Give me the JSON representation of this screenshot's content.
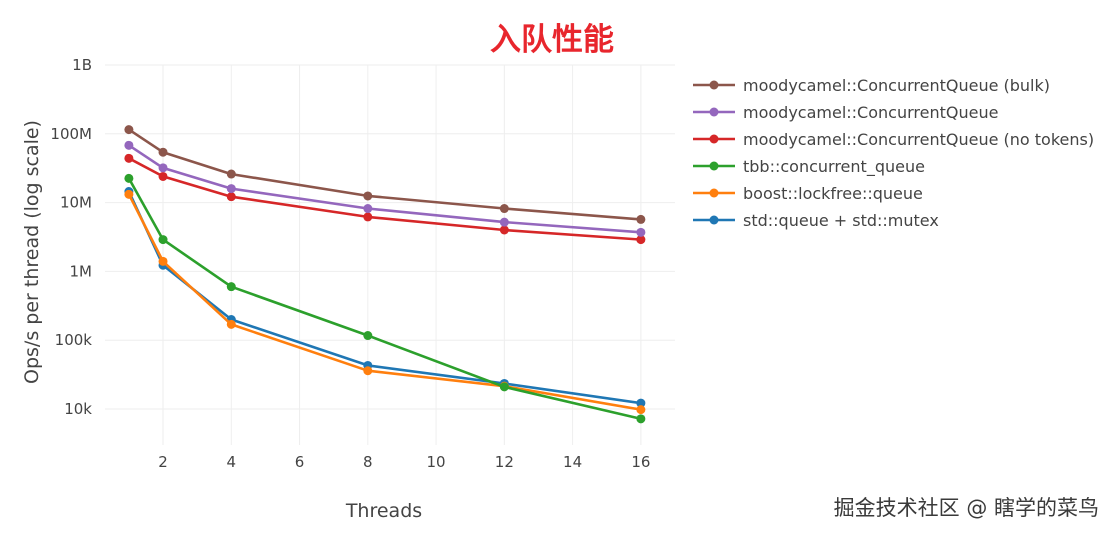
{
  "chart_data": {
    "type": "line",
    "title": "入队性能",
    "title_color": "#e8262d",
    "xlabel": "Threads",
    "ylabel": "Ops/s per thread (log scale)",
    "y_scale": "log",
    "ylim": [
      3000,
      1000000000
    ],
    "xlim": [
      0.3,
      17
    ],
    "x_ticks": [
      2,
      4,
      6,
      8,
      10,
      12,
      14,
      16
    ],
    "y_ticks": [
      {
        "value": 10000,
        "label": "10k"
      },
      {
        "value": 100000,
        "label": "100k"
      },
      {
        "value": 1000000,
        "label": "1M"
      },
      {
        "value": 10000000,
        "label": "10M"
      },
      {
        "value": 100000000,
        "label": "100M"
      },
      {
        "value": 1000000000,
        "label": "1B"
      }
    ],
    "grid": true,
    "legend_position": "right",
    "series": [
      {
        "name": "moodycamel::ConcurrentQueue (bulk)",
        "color": "#8c564b",
        "x": [
          1,
          2,
          4,
          8,
          12,
          16
        ],
        "y": [
          115000000,
          54000000,
          26000000,
          12500000,
          8200000,
          5700000
        ]
      },
      {
        "name": "moodycamel::ConcurrentQueue",
        "color": "#9467bd",
        "x": [
          1,
          2,
          4,
          8,
          12,
          16
        ],
        "y": [
          68000000,
          32000000,
          16000000,
          8200000,
          5200000,
          3700000
        ]
      },
      {
        "name": "moodycamel::ConcurrentQueue (no tokens)",
        "color": "#d62728",
        "x": [
          1,
          2,
          4,
          8,
          12,
          16
        ],
        "y": [
          44000000,
          24000000,
          12200000,
          6200000,
          4000000,
          2900000
        ]
      },
      {
        "name": "tbb::concurrent_queue",
        "color": "#2ca02c",
        "x": [
          1,
          2,
          4,
          8,
          12,
          16
        ],
        "y": [
          22500000,
          2900000,
          600000,
          117000,
          21000,
          7200
        ]
      },
      {
        "name": "boost::lockfree::queue",
        "color": "#ff7f0e",
        "x": [
          1,
          2,
          4,
          8,
          12,
          16
        ],
        "y": [
          13200000,
          1400000,
          170000,
          36000,
          21500,
          9800
        ]
      },
      {
        "name": "std::queue + std::mutex",
        "color": "#1f77b4",
        "x": [
          1,
          2,
          4,
          8,
          12,
          16
        ],
        "y": [
          14500000,
          1230000,
          200000,
          43000,
          23500,
          12200
        ]
      }
    ]
  },
  "watermark": "掘金技术社区 @ 瞎学的菜鸟"
}
